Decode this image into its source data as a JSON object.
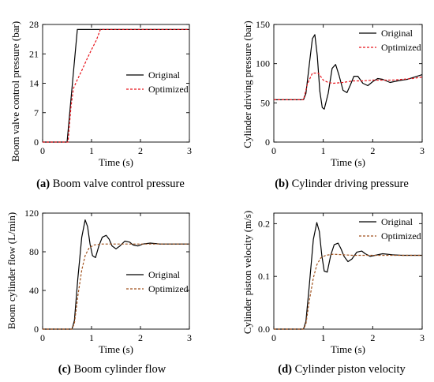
{
  "chart_data": [
    {
      "type": "line",
      "panel_letter": "(a)",
      "caption": "Boom valve control pressure",
      "xlabel": "Time (s)",
      "ylabel": "Boom valve control pressure (bar)",
      "xlim": [
        0,
        3
      ],
      "ylim": [
        0,
        28
      ],
      "xticks": [
        "0",
        "1",
        "2",
        "3"
      ],
      "yticks": [
        "0",
        "7",
        "14",
        "21",
        "28"
      ],
      "legend_position": "center-right",
      "grid": false,
      "series": [
        {
          "name": "Original",
          "color": "#000000",
          "style": "solid",
          "x": [
            0,
            0.5,
            0.71,
            3.0
          ],
          "y": [
            0,
            0,
            26.8,
            26.8
          ]
        },
        {
          "name": "Optimized",
          "color": "#e8141c",
          "style": "dashed",
          "x": [
            0,
            0.52,
            0.58,
            0.63,
            0.7,
            0.8,
            0.9,
            1.0,
            1.1,
            1.18,
            3.0
          ],
          "y": [
            0,
            0,
            8.5,
            12.8,
            14.6,
            17.0,
            19.6,
            22.0,
            24.3,
            26.8,
            26.8
          ]
        }
      ]
    },
    {
      "type": "line",
      "panel_letter": "(b)",
      "caption": "Cylinder driving pressure",
      "xlabel": "Time (s)",
      "ylabel": "Cylinder driving pressure (bar)",
      "xlim": [
        0,
        3
      ],
      "ylim": [
        0,
        150
      ],
      "xticks": [
        "0",
        "1",
        "2",
        "3"
      ],
      "yticks": [
        "0",
        "50",
        "100",
        "150"
      ],
      "legend_position": "top-right",
      "grid": false,
      "series": [
        {
          "name": "Original",
          "color": "#000000",
          "style": "solid",
          "x": [
            0,
            0.6,
            0.65,
            0.72,
            0.78,
            0.83,
            0.88,
            0.93,
            0.98,
            1.02,
            1.1,
            1.18,
            1.25,
            1.32,
            1.4,
            1.48,
            1.55,
            1.62,
            1.7,
            1.8,
            1.9,
            2.0,
            2.1,
            2.2,
            2.35,
            2.5,
            2.7,
            2.85,
            3.0
          ],
          "y": [
            54,
            54,
            62,
            100,
            132,
            137,
            110,
            65,
            44,
            42,
            62,
            94,
            99,
            85,
            66,
            63,
            73,
            84,
            84,
            75,
            72,
            77,
            81,
            80,
            76,
            78,
            80,
            83,
            86
          ]
        },
        {
          "name": "Optimized",
          "color": "#e8141c",
          "style": "dashed",
          "x": [
            0,
            0.6,
            0.68,
            0.78,
            0.9,
            1.0,
            1.1,
            1.2,
            1.4,
            1.6,
            1.8,
            2.0,
            2.2,
            2.4,
            2.6,
            2.8,
            3.0
          ],
          "y": [
            54,
            54,
            74,
            88,
            88,
            79,
            76,
            75,
            76,
            78,
            78,
            79,
            79,
            79,
            80,
            81,
            83
          ]
        }
      ]
    },
    {
      "type": "line",
      "panel_letter": "(c)",
      "caption": "Boom cylinder flow",
      "xlabel": "Time (s)",
      "ylabel": "Boom cylinder flow (L/min)",
      "xlim": [
        0,
        3
      ],
      "ylim": [
        0,
        120
      ],
      "xticks": [
        "0",
        "1",
        "2",
        "3"
      ],
      "yticks": [
        "0",
        "40",
        "80",
        "120"
      ],
      "legend_position": "center-right",
      "grid": false,
      "series": [
        {
          "name": "Original",
          "color": "#000000",
          "style": "solid",
          "x": [
            0,
            0.6,
            0.65,
            0.72,
            0.8,
            0.87,
            0.92,
            0.97,
            1.02,
            1.08,
            1.15,
            1.22,
            1.3,
            1.36,
            1.42,
            1.5,
            1.58,
            1.68,
            1.78,
            1.85,
            1.95,
            2.05,
            2.2,
            2.4,
            2.6,
            2.8,
            3.0
          ],
          "y": [
            0,
            0,
            9,
            52,
            95,
            113,
            106,
            88,
            76,
            74,
            86,
            95,
            97,
            93,
            86,
            83,
            86,
            91,
            90,
            87,
            86,
            88,
            89,
            88,
            88,
            88,
            88
          ]
        },
        {
          "name": "Optimized",
          "color": "#a0521e",
          "style": "dashed",
          "x": [
            0,
            0.6,
            0.65,
            0.72,
            0.8,
            0.87,
            0.95,
            1.05,
            1.2,
            1.4,
            1.6,
            2.0,
            2.5,
            3.0
          ],
          "y": [
            0,
            0,
            6,
            34,
            61,
            76,
            84,
            87,
            88,
            88,
            88,
            88,
            88,
            88
          ]
        }
      ]
    },
    {
      "type": "line",
      "panel_letter": "(d)",
      "caption": "Cylinder piston velocity",
      "xlabel": "Time (s)",
      "ylabel": "Cylinder piston velocity (m/s)",
      "xlim": [
        0,
        3
      ],
      "ylim": [
        0,
        0.22
      ],
      "xticks": [
        "0",
        "1",
        "2",
        "3"
      ],
      "yticks": [
        "0.0",
        "0.1",
        "0.2"
      ],
      "legend_position": "top-right",
      "grid": false,
      "series": [
        {
          "name": "Original",
          "color": "#000000",
          "style": "solid",
          "x": [
            0,
            0.6,
            0.65,
            0.72,
            0.8,
            0.87,
            0.92,
            0.97,
            1.02,
            1.08,
            1.15,
            1.22,
            1.3,
            1.36,
            1.42,
            1.5,
            1.58,
            1.68,
            1.78,
            1.85,
            1.95,
            2.05,
            2.2,
            2.4,
            2.6,
            2.8,
            3.0
          ],
          "y": [
            0,
            0,
            0.015,
            0.085,
            0.17,
            0.202,
            0.185,
            0.14,
            0.11,
            0.108,
            0.14,
            0.16,
            0.163,
            0.152,
            0.138,
            0.128,
            0.133,
            0.146,
            0.148,
            0.143,
            0.138,
            0.14,
            0.143,
            0.141,
            0.14,
            0.14,
            0.14
          ]
        },
        {
          "name": "Optimized",
          "color": "#a0521e",
          "style": "dashed",
          "x": [
            0,
            0.6,
            0.65,
            0.72,
            0.8,
            0.87,
            0.95,
            1.05,
            1.2,
            1.4,
            1.6,
            2.0,
            2.5,
            3.0
          ],
          "y": [
            0,
            0,
            0.01,
            0.055,
            0.097,
            0.122,
            0.135,
            0.14,
            0.142,
            0.141,
            0.14,
            0.14,
            0.14,
            0.14
          ]
        }
      ]
    }
  ]
}
